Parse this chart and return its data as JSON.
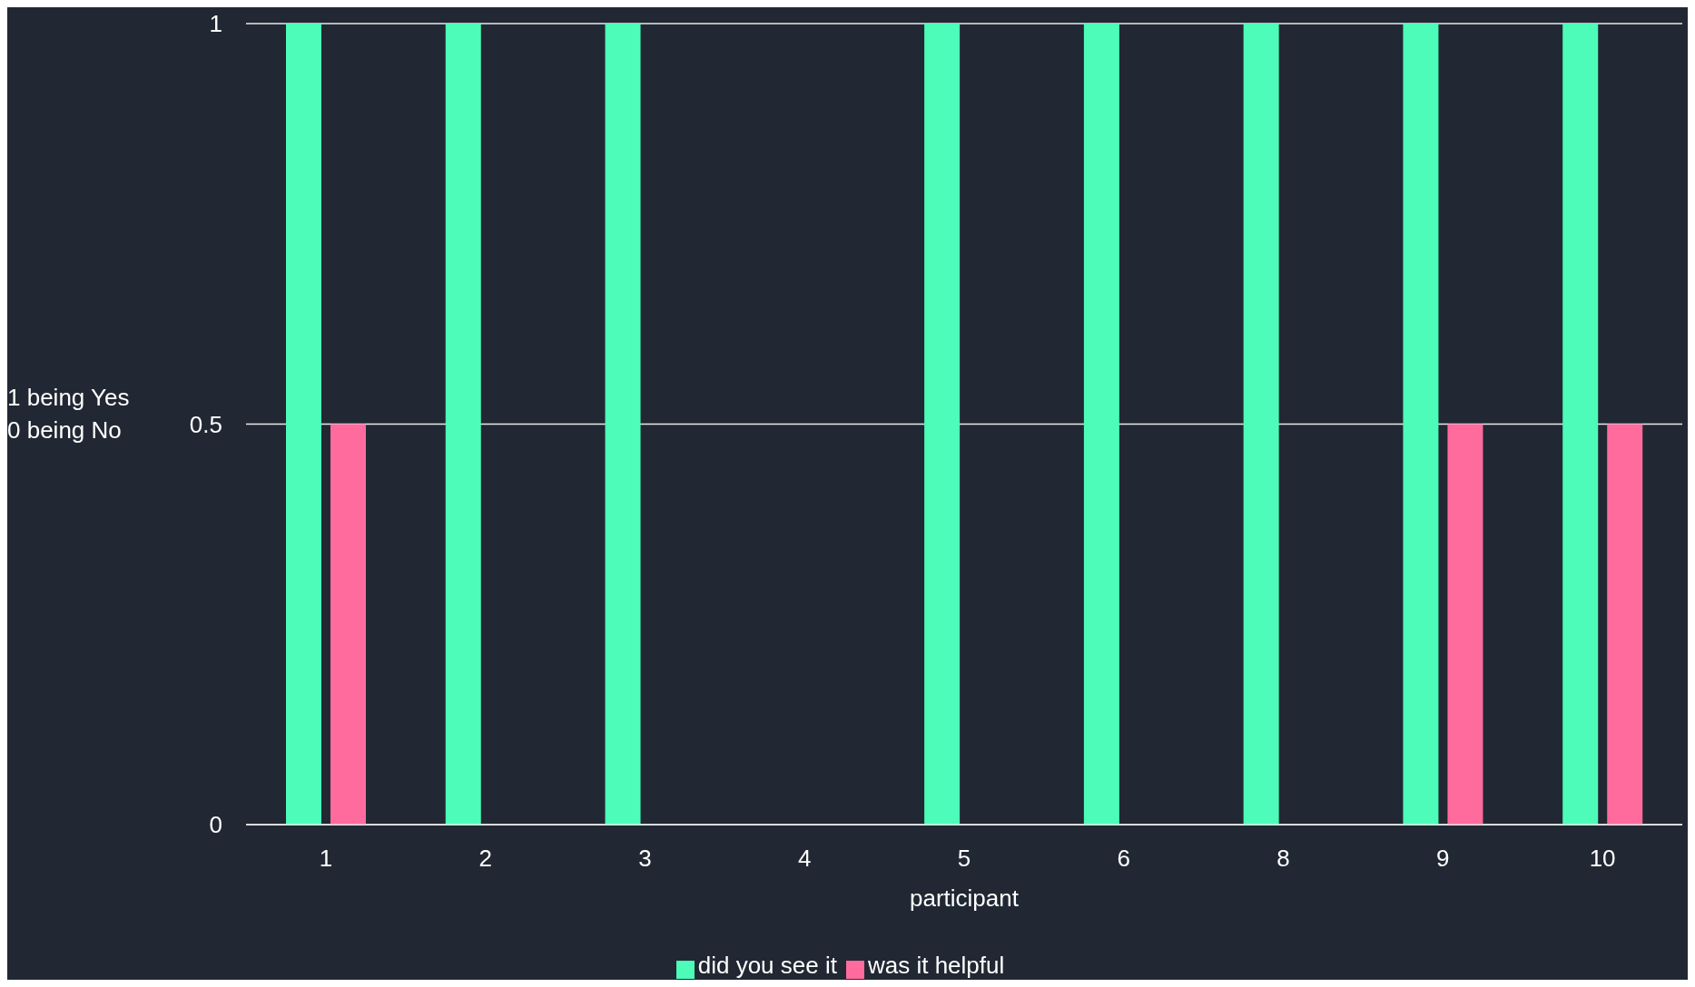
{
  "chart_data": {
    "type": "bar",
    "xlabel": "participant",
    "ylabel": "1 being Yes\n0 being No",
    "categories": [
      "1",
      "2",
      "3",
      "4",
      "5",
      "6",
      "8",
      "9",
      "10"
    ],
    "series": [
      {
        "name": "did you see it",
        "color": "#4dfcb9",
        "values": [
          1,
          1,
          1,
          0,
          1,
          1,
          1,
          1,
          1
        ]
      },
      {
        "name": "was it helpful",
        "color": "#ff6b9d",
        "values": [
          0.5,
          0,
          0,
          0,
          0,
          0,
          0,
          0.5,
          0.5
        ]
      }
    ],
    "ylim": [
      0,
      1
    ],
    "yticks": [
      0,
      0.5,
      1
    ],
    "grid": "y",
    "legend": "bottom"
  }
}
